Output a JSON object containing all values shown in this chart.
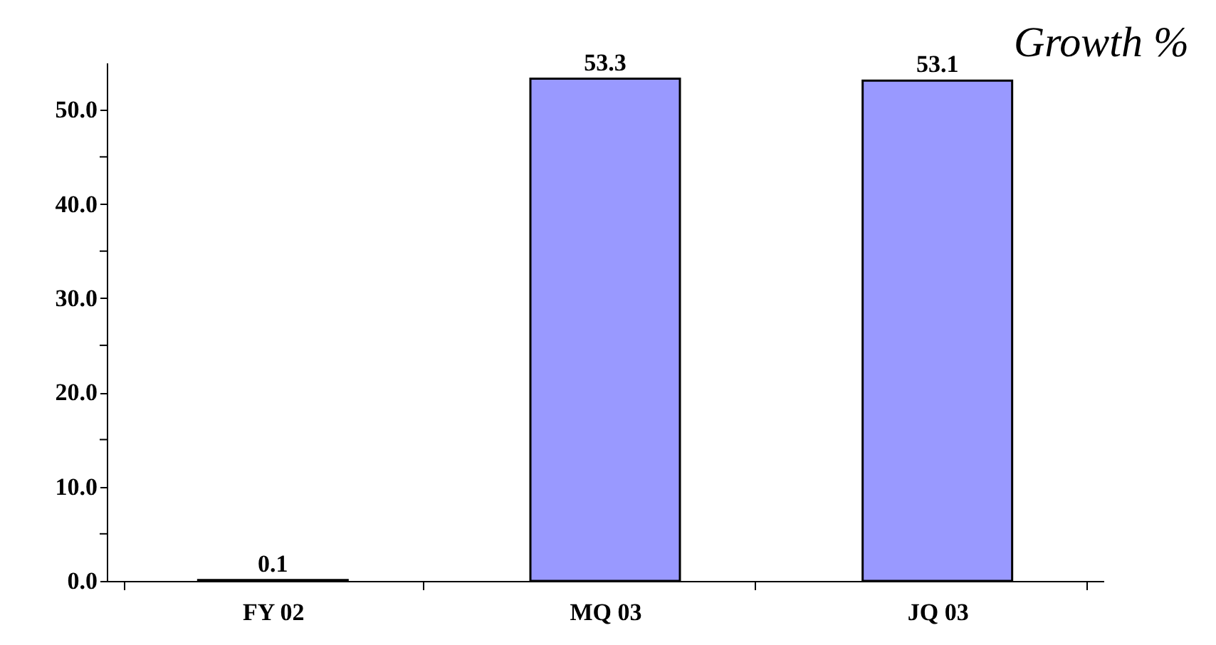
{
  "chart_data": {
    "type": "bar",
    "title": "Growth %",
    "categories": [
      "FY 02",
      "MQ 03",
      "JQ 03"
    ],
    "values": [
      0.1,
      53.3,
      53.1
    ],
    "color": "#9999ff",
    "data_labels": true,
    "ylim": [
      0,
      55
    ],
    "yticks": [
      {
        "value": 0,
        "label": "0.0"
      },
      {
        "value": 5,
        "label": null
      },
      {
        "value": 10,
        "label": "10.0"
      },
      {
        "value": 15,
        "label": null
      },
      {
        "value": 20,
        "label": "20.0"
      },
      {
        "value": 25,
        "label": null
      },
      {
        "value": 30,
        "label": "30.0"
      },
      {
        "value": 35,
        "label": null
      },
      {
        "value": 40,
        "label": "40.0"
      },
      {
        "value": 45,
        "label": null
      },
      {
        "value": 50,
        "label": "50.0"
      }
    ],
    "grid": false
  }
}
